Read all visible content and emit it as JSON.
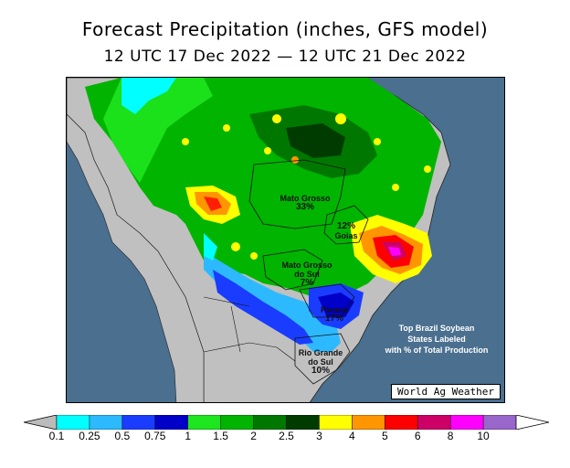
{
  "title": "Forecast Precipitation (inches, GFS model)",
  "subtitle": "12 UTC 17 Dec 2022 — 12 UTC 21 Dec 2022",
  "states": [
    {
      "name": "Mato Grosso",
      "pct": "33%"
    },
    {
      "name": "Goias",
      "pct": "12%"
    },
    {
      "name": "Mato Grosso do Sul",
      "pct": "7%"
    },
    {
      "name": "Parana",
      "pct": "17%"
    },
    {
      "name": "Rio Grande do Sul",
      "pct": "10%"
    }
  ],
  "labels": {
    "mato_grosso": "Mato Grosso",
    "goias": "Goias",
    "mato_grosso_do_sul_line1": "Mato Grosso",
    "mato_grosso_do_sul_line2": "do Sul",
    "parana": "Parana",
    "rio_grande_do_sul_line1": "Rio Grande",
    "rio_grande_do_sul_line2": "do Sul"
  },
  "percents": {
    "mato_grosso": "33%",
    "goias": "12%",
    "mato_grosso_do_sul": "7%",
    "parana": "17%",
    "rio_grande_do_sul": "10%"
  },
  "note": {
    "line1": "Top Brazil Soybean",
    "line2": "States Labeled",
    "line3": "with % of Total Production"
  },
  "credit": "World Ag Weather",
  "legend": {
    "ticks": [
      "0.1",
      "0.25",
      "0.5",
      "0.75",
      "1",
      "1.5",
      "2",
      "2.5",
      "3",
      "4",
      "5",
      "6",
      "8",
      "10"
    ],
    "colors": [
      "#00ffff",
      "#2db9ff",
      "#1a3cff",
      "#0000c8",
      "#1ee61e",
      "#00b400",
      "#007800",
      "#003c00",
      "#ffff00",
      "#ff9600",
      "#ff0000",
      "#cc0066",
      "#ff00ff",
      "#9966cc"
    ]
  },
  "colors": {
    "ocean": "#4a6f8f",
    "land_dry": "#c0c0c0"
  }
}
